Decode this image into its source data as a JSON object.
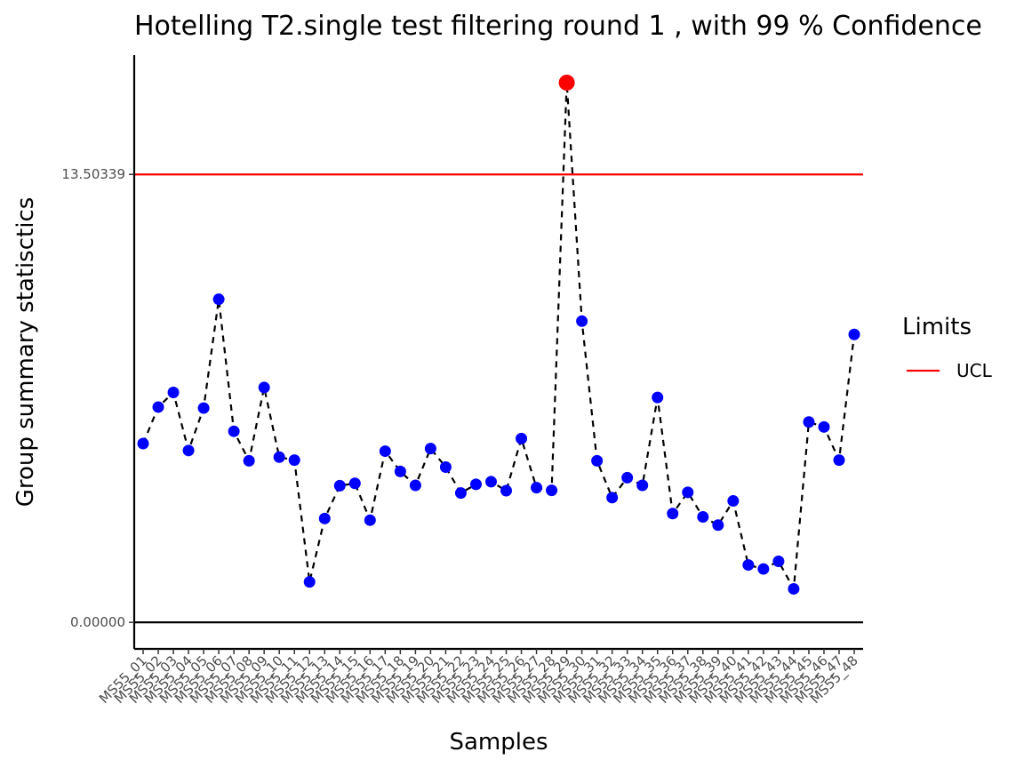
{
  "chart_data": {
    "type": "line",
    "title": "Hotelling  T2.single  test filtering round  1 , with  99 % Confidence",
    "xlabel": "Samples",
    "ylabel": "Group summary statisctics",
    "categories": [
      "MS55_01",
      "MS55_02",
      "MS55_03",
      "MS55_04",
      "MS55_05",
      "MS55_06",
      "MS55_07",
      "MS55_08",
      "MS55_09",
      "MS55_10",
      "MS55_11",
      "MS55_12",
      "MS55_13",
      "MS55_14",
      "MS55_15",
      "MS55_16",
      "MS55_17",
      "MS55_18",
      "MS55_19",
      "MS55_20",
      "MS55_21",
      "MS55_22",
      "MS55_23",
      "MS55_24",
      "MS55_25",
      "MS55_26",
      "MS55_27",
      "MS55_28",
      "MS55_29",
      "MS55_30",
      "MS55_31",
      "MS55_32",
      "MS55_33",
      "MS55_34",
      "MS55_35",
      "MS55_36",
      "MS55_37",
      "MS55_38",
      "MS55_39",
      "MS55_40",
      "MS55_41",
      "MS55_42",
      "MS55_43",
      "MS55_44",
      "MS55_45",
      "MS55_46",
      "MS55_47",
      "MS55_48"
    ],
    "series": [
      {
        "values": [
          5.39,
          6.49,
          6.93,
          5.18,
          6.46,
          9.74,
          5.76,
          4.87,
          7.08,
          4.98,
          4.89,
          1.22,
          3.13,
          4.12,
          4.19,
          3.08,
          5.16,
          4.55,
          4.13,
          5.24,
          4.68,
          3.9,
          4.16,
          4.24,
          3.97,
          5.54,
          4.06,
          3.98,
          16.27,
          9.08,
          4.87,
          3.76,
          4.36,
          4.13,
          6.78,
          3.28,
          3.92,
          3.18,
          2.93,
          3.66,
          1.73,
          1.61,
          1.84,
          1.01,
          6.04,
          5.89,
          4.89,
          8.68
        ],
        "color": "#0000ff",
        "line_style": "dashed",
        "line_color": "#000000"
      }
    ],
    "out_of_control_color": "#ff0000",
    "reference_lines": [
      {
        "label": "13.50339",
        "value": 13.50339,
        "color": "#ff0000"
      },
      {
        "label": "0.00000",
        "value": 0.0,
        "color": "#000000"
      }
    ],
    "y_ticks": [
      {
        "value": 0.0,
        "label": "0.00000"
      },
      {
        "value": 13.50339,
        "label": "13.50339"
      }
    ],
    "ylim": [
      -0.8,
      17.1
    ],
    "legend": {
      "title": "Limits",
      "position": "right",
      "items": [
        {
          "label": "UCL",
          "color": "#ff0000"
        }
      ]
    },
    "grid": false
  }
}
